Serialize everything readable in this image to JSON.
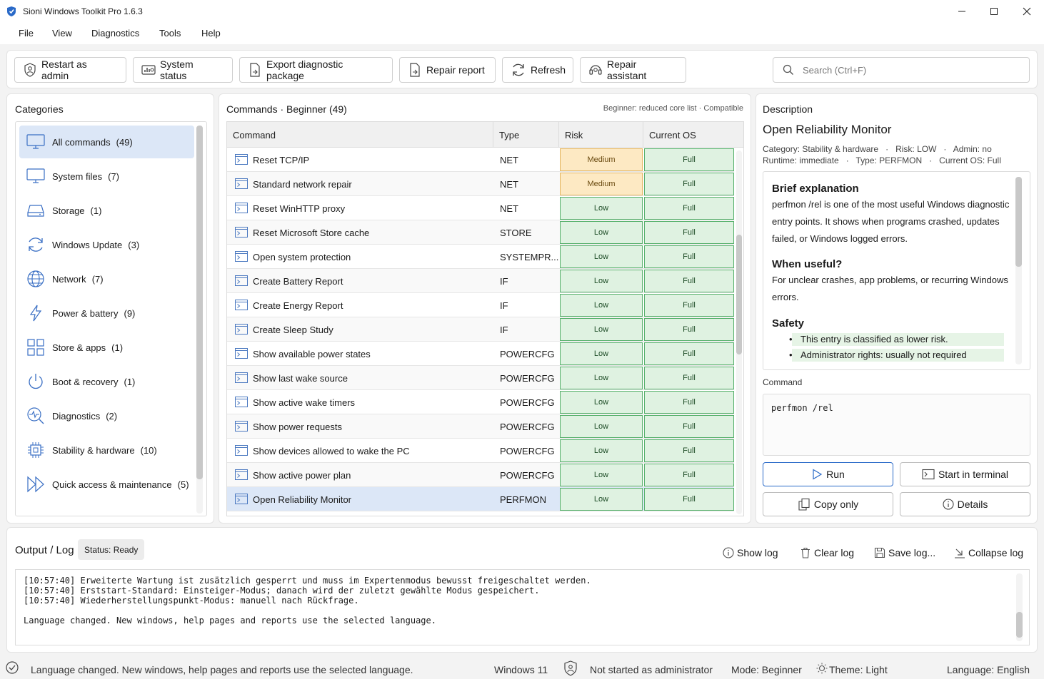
{
  "window": {
    "title": "Sioni Windows Toolkit Pro 1.6.3"
  },
  "menu": [
    "File",
    "View",
    "Diagnostics",
    "Tools",
    "Help"
  ],
  "toolbar": {
    "restart_admin": "Restart as admin",
    "system_status": "System status",
    "export": "Export diagnostic package",
    "repair_report": "Repair report",
    "refresh": "Refresh",
    "repair_assistant": "Repair assistant",
    "search_placeholder": "Search (Ctrl+F)"
  },
  "categories": {
    "title": "Categories",
    "items": [
      {
        "label": "All commands",
        "count": "(49)",
        "icon": "monitor-icon",
        "selected": true
      },
      {
        "label": "System files",
        "count": "(7)",
        "icon": "monitor-icon"
      },
      {
        "label": "Storage",
        "count": "(1)",
        "icon": "drive-icon"
      },
      {
        "label": "Windows Update",
        "count": "(3)",
        "icon": "sync-icon"
      },
      {
        "label": "Network",
        "count": "(7)",
        "icon": "globe-icon"
      },
      {
        "label": "Power & battery",
        "count": "(9)",
        "icon": "lightning-icon"
      },
      {
        "label": "Store & apps",
        "count": "(1)",
        "icon": "grid-icon"
      },
      {
        "label": "Boot & recovery",
        "count": "(1)",
        "icon": "power-icon"
      },
      {
        "label": "Diagnostics",
        "count": "(2)",
        "icon": "pulse-icon"
      },
      {
        "label": "Stability & hardware",
        "count": "(10)",
        "icon": "chip-icon"
      },
      {
        "label": "Quick access & maintenance",
        "count": "(5)",
        "icon": "fast-forward-icon"
      }
    ]
  },
  "commands": {
    "title": "Commands · Beginner (49)",
    "hint": "Beginner: reduced core list · Compatible",
    "columns": [
      "Command",
      "Type",
      "Risk",
      "Current OS"
    ],
    "rows": [
      {
        "name": "Reset TCP/IP",
        "type": "NET",
        "risk": "Medium",
        "os": "Full"
      },
      {
        "name": "Standard network repair",
        "type": "NET",
        "risk": "Medium",
        "os": "Full"
      },
      {
        "name": "Reset WinHTTP proxy",
        "type": "NET",
        "risk": "Low",
        "os": "Full"
      },
      {
        "name": "Reset Microsoft Store cache",
        "type": "STORE",
        "risk": "Low",
        "os": "Full"
      },
      {
        "name": "Open system protection",
        "type": "SYSTEMPR...",
        "risk": "Low",
        "os": "Full"
      },
      {
        "name": "Create Battery Report",
        "type": "IF",
        "risk": "Low",
        "os": "Full"
      },
      {
        "name": "Create Energy Report",
        "type": "IF",
        "risk": "Low",
        "os": "Full"
      },
      {
        "name": "Create Sleep Study",
        "type": "IF",
        "risk": "Low",
        "os": "Full"
      },
      {
        "name": "Show available power states",
        "type": "POWERCFG",
        "risk": "Low",
        "os": "Full"
      },
      {
        "name": "Show last wake source",
        "type": "POWERCFG",
        "risk": "Low",
        "os": "Full"
      },
      {
        "name": "Show active wake timers",
        "type": "POWERCFG",
        "risk": "Low",
        "os": "Full"
      },
      {
        "name": "Show power requests",
        "type": "POWERCFG",
        "risk": "Low",
        "os": "Full"
      },
      {
        "name": "Show devices allowed to wake the PC",
        "type": "POWERCFG",
        "risk": "Low",
        "os": "Full"
      },
      {
        "name": "Show active power plan",
        "type": "POWERCFG",
        "risk": "Low",
        "os": "Full"
      },
      {
        "name": "Open Reliability Monitor",
        "type": "PERFMON",
        "risk": "Low",
        "os": "Full",
        "selected": true
      }
    ]
  },
  "description": {
    "title": "Description",
    "heading": "Open Reliability Monitor",
    "meta1": "Category: Stability & hardware   ·   Risk: LOW   ·   Admin: no",
    "meta2": "Runtime: immediate   ·   Type: PERFMON   ·   Current OS: Full",
    "brief_h": "Brief explanation",
    "brief_t": "perfmon /rel is one of the most useful Windows diagnostic entry points. It shows when programs crashed, updates failed, or Windows logged errors.",
    "useful_h": "When useful?",
    "useful_t": "For unclear crashes, app problems, or recurring Windows errors.",
    "safety_h": "Safety",
    "safety_items": [
      "This entry is classified as lower risk.",
      "Administrator rights: usually not required"
    ],
    "command_label": "Command",
    "command": "perfmon /rel",
    "run": "Run",
    "terminal": "Start in terminal",
    "copy": "Copy only",
    "details": "Details"
  },
  "output": {
    "title": "Output / Log",
    "status": "Status: Ready",
    "show_log": "Show log",
    "clear_log": "Clear log",
    "save_log": "Save log...",
    "collapse_log": "Collapse log",
    "lines": [
      "[10:57:40] Erweiterte Wartung ist zusätzlich gesperrt und muss im Expertenmodus bewusst freigeschaltet werden.",
      "[10:57:40] Erststart-Standard: Einsteiger-Modus; danach wird der zuletzt gewählte Modus gespeichert.",
      "[10:57:40] Wiederherstellungspunkt-Modus: manuell nach Rückfrage.",
      "",
      "Language changed. New windows, help pages and reports use the selected language."
    ]
  },
  "statusbar": {
    "message": "Language changed. New windows, help pages and reports use the selected language.",
    "os": "Windows 11",
    "admin": "Not started as administrator",
    "mode": "Mode: Beginner",
    "theme": "Theme: Light",
    "language": "Language: English"
  },
  "colors": {
    "accent": "#2a6ac8",
    "low_bg": "#dff2e1",
    "medium_bg": "#fde9c3",
    "selected": "#dce7f7"
  }
}
